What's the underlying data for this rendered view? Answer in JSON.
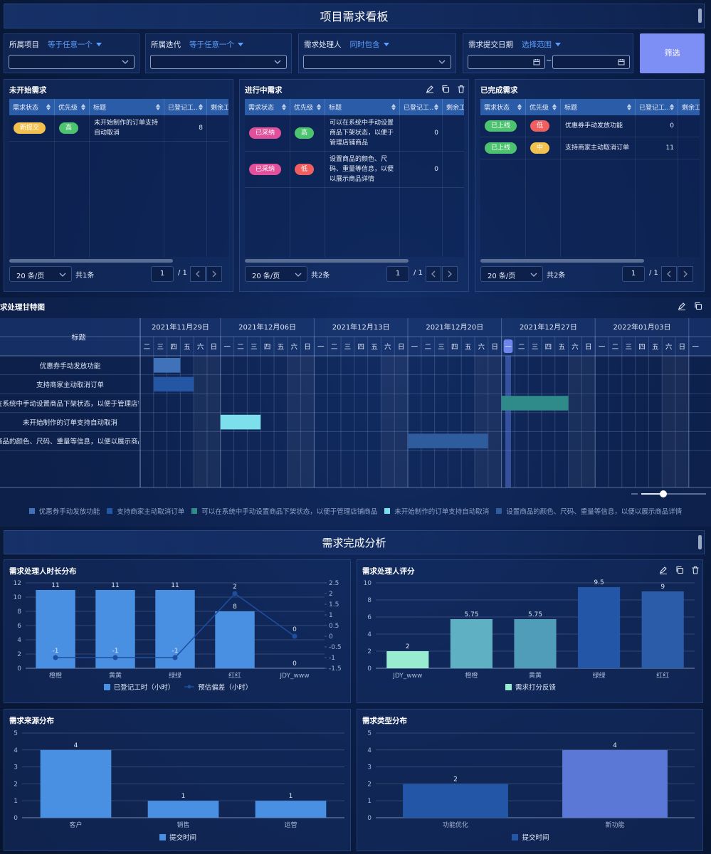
{
  "header": {
    "title": "项目需求看板"
  },
  "filters": [
    {
      "label": "所属项目",
      "operator": "等于任意一个"
    },
    {
      "label": "所属迭代",
      "operator": "等于任意一个"
    },
    {
      "label": "需求处理人",
      "operator": "同时包含"
    },
    {
      "label": "需求提交日期",
      "operator": "选择范围",
      "separator": "~"
    }
  ],
  "filter_button": "筛选",
  "tables": [
    {
      "title": "未开始需求",
      "columns": [
        "需求状态",
        "优先级",
        "标题",
        "已登记工...",
        "剩余工"
      ],
      "rows": [
        {
          "status": {
            "text": "新提交",
            "color": "#f2c14e"
          },
          "priority": {
            "text": "高",
            "color": "#4cc36e"
          },
          "title": "未开始制作的订单支持自动取消",
          "logged": 8
        }
      ],
      "page_size": "20 条/页",
      "total": "共1条",
      "page": "1",
      "pages": "/ 1"
    },
    {
      "title": "进行中需求",
      "columns": [
        "需求状态",
        "优先级",
        "标题",
        "已登记工...",
        "剩余工"
      ],
      "rows": [
        {
          "status": {
            "text": "已采纳",
            "color": "#e2509c"
          },
          "priority": {
            "text": "高",
            "color": "#4cc36e"
          },
          "title": "可以在系统中手动设置商品下架状态，以便于管理店铺商品",
          "logged": 0
        },
        {
          "status": {
            "text": "已采纳",
            "color": "#e2509c"
          },
          "priority": {
            "text": "低",
            "color": "#ef5f5f"
          },
          "title": "设置商品的颜色、尺码、重量等信息，以便以展示商品详情",
          "logged": 0
        }
      ],
      "page_size": "20 条/页",
      "total": "共2条",
      "page": "1",
      "pages": "/ 1"
    },
    {
      "title": "已完成需求",
      "columns": [
        "需求状态",
        "优先级",
        "标题",
        "已登记工...",
        "剩余工"
      ],
      "rows": [
        {
          "status": {
            "text": "已上线",
            "color": "#4cc36e"
          },
          "priority": {
            "text": "低",
            "color": "#ef5f5f"
          },
          "title": "优惠券手动发放功能",
          "logged": 0
        },
        {
          "status": {
            "text": "已上线",
            "color": "#4cc36e"
          },
          "priority": {
            "text": "中",
            "color": "#f2c14e"
          },
          "title": "支持商家主动取消订单",
          "logged": 11
        }
      ],
      "page_size": "20 条/页",
      "total": "共2条",
      "page": "1",
      "pages": "/ 1"
    }
  ],
  "gantt": {
    "title": "求处理甘特图",
    "header": "标题",
    "today": "2021-12-27",
    "weeks": [
      {
        "label": "2021年11月29日",
        "days": [
          "二",
          "三",
          "四",
          "五",
          "六",
          "日"
        ]
      },
      {
        "label": "2021年12月06日",
        "days": [
          "一",
          "二",
          "三",
          "四",
          "五",
          "六",
          "日"
        ]
      },
      {
        "label": "2021年12月13日",
        "days": [
          "一",
          "二",
          "三",
          "四",
          "五",
          "六",
          "日"
        ]
      },
      {
        "label": "2021年12月20日",
        "days": [
          "一",
          "二",
          "三",
          "四",
          "五",
          "六",
          "日"
        ]
      },
      {
        "label": "2021年12月27日",
        "days": [
          "一",
          "二",
          "三",
          "四",
          "五",
          "六",
          "日"
        ]
      },
      {
        "label": "2022年01月03日",
        "days": [
          "一",
          "二",
          "三",
          "四",
          "五",
          "六",
          "日"
        ]
      },
      {
        "label": null,
        "days": [
          "一"
        ]
      }
    ],
    "tasks": [
      {
        "name": "优惠券手动发放功能",
        "color": "#3f72b8",
        "start": "2021-12-01",
        "end": "2021-12-02"
      },
      {
        "name": "支持商家主动取消订单",
        "color": "#2456a3",
        "start": "2021-12-01",
        "end": "2021-12-03"
      },
      {
        "name": "可以在系统中手动设置商品下架状态，以便于管理店铺商品",
        "color": "#2f8a8a",
        "start": "2021-12-27",
        "end": "2021-12-31"
      },
      {
        "name": "未开始制作的订单支持自动取消",
        "color": "#7edfec",
        "start": "2021-12-06",
        "end": "2021-12-08"
      },
      {
        "name": "设置商品的颜色、尺码、重量等信息，以便以展示商品详情",
        "color": "#2e5c9c",
        "start": "2021-12-20",
        "end": "2021-12-25"
      }
    ]
  },
  "analysis_title": "需求完成分析",
  "chart_data": [
    {
      "type": "bar",
      "title": "需求处理人时长分布",
      "categories": [
        "橙橙",
        "黄黄",
        "绿绿",
        "红红",
        "JDY_www"
      ],
      "series": [
        {
          "name": "已登记工时（小时）",
          "color": "#4a90e2",
          "values": [
            11,
            11,
            11,
            8,
            0
          ]
        },
        {
          "name": "预估偏差（小时）",
          "type": "line",
          "axis": "y2",
          "color": "#1f4e9e",
          "values": [
            -1,
            -1,
            -1,
            2,
            0
          ]
        }
      ],
      "ylim": [
        0,
        12
      ],
      "yticks": [
        0,
        2,
        4,
        6,
        8,
        10,
        12
      ],
      "y2lim": [
        -1.5,
        2.5
      ],
      "y2ticks": [
        -1.5,
        -1,
        -0.5,
        0,
        0.5,
        1,
        1.5,
        2,
        2.5
      ],
      "grid": true,
      "data_labels": true
    },
    {
      "type": "bar",
      "title": "需求处理人评分",
      "categories": [
        "JDY_www",
        "橙橙",
        "黄黄",
        "绿绿",
        "红红"
      ],
      "series": [
        {
          "name": "需求打分反馈",
          "color": "#98ecd0",
          "colors": [
            "#98ecd0",
            "#5fb0c2",
            "#4f9db9",
            "#2456a8",
            "#2a5ca9"
          ],
          "values": [
            2,
            5.75,
            5.75,
            9.5,
            9
          ]
        }
      ],
      "ylim": [
        0,
        10
      ],
      "yticks": [
        0,
        2,
        4,
        6,
        8,
        10
      ],
      "grid": true,
      "data_labels": true
    },
    {
      "type": "bar",
      "title": "需求来源分布",
      "categories": [
        "客户",
        "销售",
        "运营"
      ],
      "series": [
        {
          "name": "提交时间",
          "color": "#4a90e2",
          "values": [
            4,
            1,
            1
          ]
        }
      ],
      "ylim": [
        0,
        5
      ],
      "yticks": [
        0,
        1,
        2,
        3,
        4,
        5
      ],
      "grid": true,
      "data_labels": true
    },
    {
      "type": "bar",
      "title": "需求类型分布",
      "categories": [
        "功能优化",
        "新功能"
      ],
      "series": [
        {
          "name": "提交时间",
          "color": "#2456a8",
          "colors": [
            "#2456a8",
            "#5b78d6"
          ],
          "values": [
            2,
            4
          ]
        }
      ],
      "ylim": [
        0,
        5
      ],
      "yticks": [
        0,
        1,
        2,
        3,
        4,
        5
      ],
      "grid": true,
      "data_labels": true
    }
  ]
}
